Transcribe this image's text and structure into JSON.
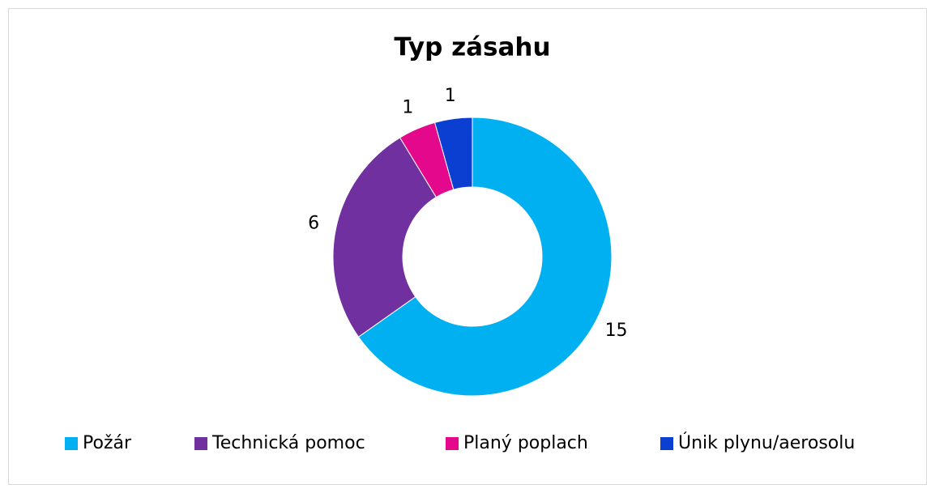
{
  "chart_data": {
    "type": "donut",
    "title": "Typ zásahu",
    "categories": [
      "Požár",
      "Technická pomoc",
      "Planý poplach",
      "Únik plynu/aerosolu"
    ],
    "values": [
      15,
      6,
      1,
      1
    ],
    "colors": [
      "#00b0f0",
      "#7030a0",
      "#e4088c",
      "#0a3fd1"
    ],
    "legend": "bottom"
  }
}
